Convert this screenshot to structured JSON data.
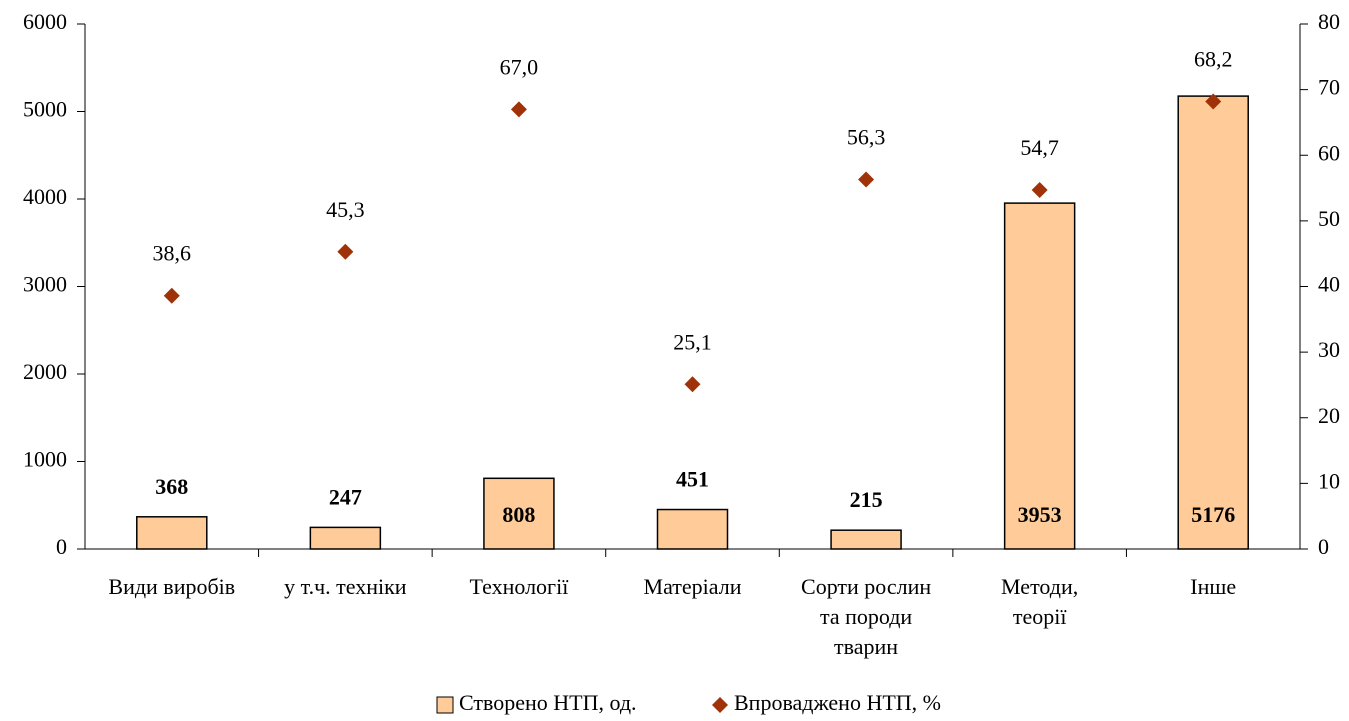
{
  "chart_data": {
    "type": "bar",
    "categories": [
      "Види виробів",
      "у т.ч. техніки",
      "Технології",
      "Матеріали",
      "Сорти рослин\nта породи\nтварин",
      "Методи,\nтеорії",
      "Інше"
    ],
    "series": [
      {
        "name": "Створено НТП, од.",
        "type": "bar",
        "color": "#ffcc99",
        "values": [
          368,
          247,
          808,
          451,
          215,
          3953,
          5176
        ]
      },
      {
        "name": "Впроваджено НТП, %",
        "type": "scatter",
        "axis": "y2",
        "color": "#a0320a",
        "values": [
          38.6,
          45.3,
          67.0,
          25.1,
          56.3,
          54.7,
          68.2
        ],
        "value_labels": [
          "38,6",
          "45,3",
          "67,0",
          "25,1",
          "56,3",
          "54,7",
          "68,2"
        ]
      }
    ],
    "ylim": [
      0,
      6000
    ],
    "yticks": [
      0,
      1000,
      2000,
      3000,
      4000,
      5000,
      6000
    ],
    "y2lim": [
      0,
      80
    ],
    "y2ticks": [
      0,
      10,
      20,
      30,
      40,
      50,
      60,
      70,
      80
    ],
    "legend": "bottom"
  }
}
